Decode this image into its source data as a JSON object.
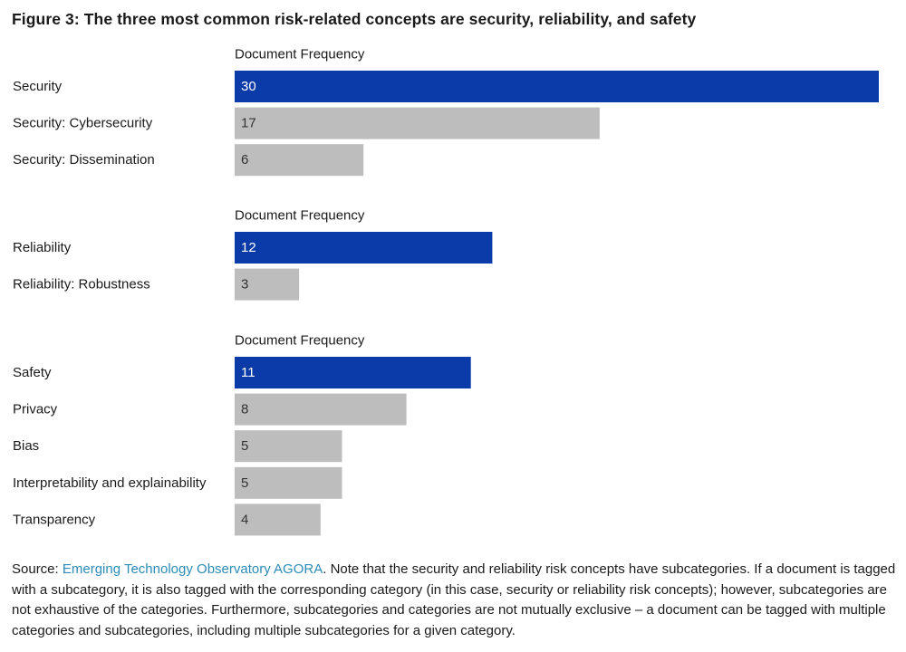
{
  "title": "Figure 3: The three most common risk-related concepts are security, reliability, and safety",
  "colors": {
    "primary": "#0b3ba8",
    "secondary": "#bdbdbd",
    "primary_text": "#ffffff",
    "secondary_text": "#333333",
    "link": "#2b8cb8"
  },
  "chart_data": {
    "type": "bar",
    "orientation": "horizontal",
    "xlim": [
      0,
      30
    ],
    "groups": [
      {
        "header": "Document Frequency",
        "bars": [
          {
            "label": "Security",
            "value": 30,
            "kind": "category"
          },
          {
            "label": "Security: Cybersecurity",
            "value": 17,
            "kind": "subcategory"
          },
          {
            "label": "Security: Dissemination",
            "value": 6,
            "kind": "subcategory"
          }
        ]
      },
      {
        "header": "Document Frequency",
        "bars": [
          {
            "label": "Reliability",
            "value": 12,
            "kind": "category"
          },
          {
            "label": "Reliability: Robustness",
            "value": 3,
            "kind": "subcategory"
          }
        ]
      },
      {
        "header": "Document Frequency",
        "bars": [
          {
            "label": "Safety",
            "value": 11,
            "kind": "category"
          },
          {
            "label": "Privacy",
            "value": 8,
            "kind": "subcategory"
          },
          {
            "label": "Bias",
            "value": 5,
            "kind": "subcategory"
          },
          {
            "label": "Interpretability and explainability",
            "value": 5,
            "kind": "subcategory"
          },
          {
            "label": "Transparency",
            "value": 4,
            "kind": "subcategory"
          }
        ]
      }
    ]
  },
  "source": {
    "prefix": "Source: ",
    "link_text": "Emerging Technology Observatory AGORA",
    "text": ". Note that the security and reliability risk concepts have subcategories. If a document is tagged with a subcategory, it is also tagged with the corresponding category (in this case, security or reliability risk concepts); however, subcategories are not exhaustive of the categories. Furthermore, subcategories and categories are not mutually exclusive – a document can be tagged with multiple categories and subcategories, including multiple subcategories for a given category."
  }
}
